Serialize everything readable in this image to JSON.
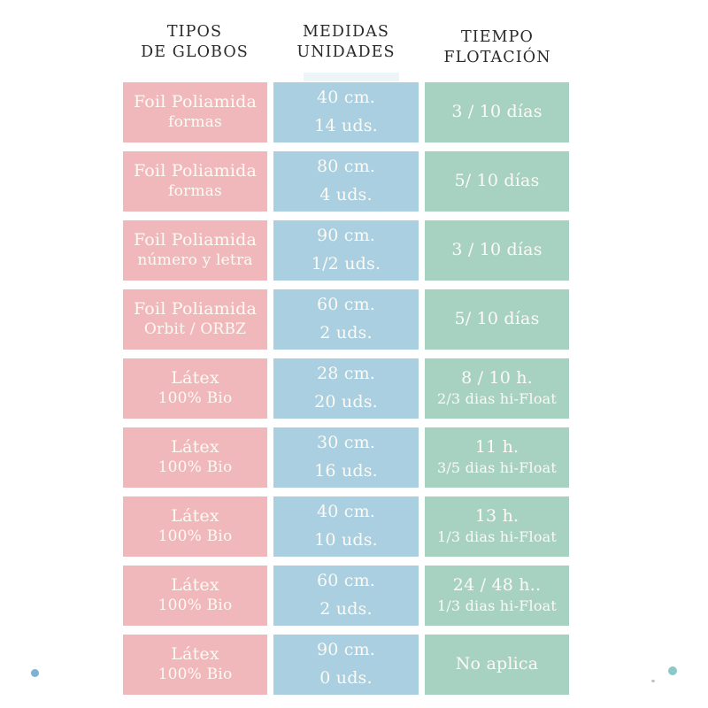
{
  "title_columns": [
    {
      "line1": "TIPOS",
      "line2": "DE GLOBOS"
    },
    {
      "line1": "MEDIDAS",
      "line2": "UNIDADES"
    },
    {
      "line1": "TIEMPO",
      "line2": "FLOTACIÓN"
    }
  ],
  "rows": [
    {
      "type": "Foil Poliamida",
      "type_sub": "formas",
      "size": "40 cm.",
      "units": "14 uds.",
      "float_main": "3 / 10 días",
      "float_sub": ""
    },
    {
      "type": "Foil Poliamida",
      "type_sub": "formas",
      "size": "80 cm.",
      "units": "4 uds.",
      "float_main": "5/ 10 días",
      "float_sub": ""
    },
    {
      "type": "Foil Poliamida",
      "type_sub": "número y letra",
      "size": "90 cm.",
      "units": "1/2 uds.",
      "float_main": "3 / 10 días",
      "float_sub": ""
    },
    {
      "type": "Foil Poliamida",
      "type_sub": "Orbit / ORBZ",
      "size": "60 cm.",
      "units": "2 uds.",
      "float_main": "5/ 10 días",
      "float_sub": ""
    },
    {
      "type": "Látex",
      "type_sub": "100% Bio",
      "size": "28 cm.",
      "units": "20 uds.",
      "float_main": "8 / 10 h.",
      "float_sub": "2/3 dias hi-Float"
    },
    {
      "type": "Látex",
      "type_sub": "100% Bio",
      "size": "30 cm.",
      "units": "16 uds.",
      "float_main": "11 h.",
      "float_sub": "3/5 dias hi-Float"
    },
    {
      "type": "Látex",
      "type_sub": "100% Bio",
      "size": "40 cm.",
      "units": "10 uds.",
      "float_main": "13 h.",
      "float_sub": "1/3 dias hi-Float"
    },
    {
      "type": "Látex",
      "type_sub": "100% Bio",
      "size": "60 cm.",
      "units": "2 uds.",
      "float_main": "24 / 48 h..",
      "float_sub": "1/3 dias hi-Float"
    },
    {
      "type": "Látex",
      "type_sub": "100% Bio",
      "size": "90 cm.",
      "units": "0 uds.",
      "float_main": "No aplica",
      "float_sub": ""
    }
  ],
  "palette": {
    "pink": "#f1b8bb",
    "blue": "#a9cfe0",
    "green": "#a7d2c2",
    "cell-text": "#fdfaf4",
    "hdr-text": "#2a2a2a",
    "dot-blue": "#7cb2d3",
    "dot-teal": "#8ac9c5"
  },
  "chart_data": {
    "type": "table",
    "title": "",
    "columns": [
      "TIPOS DE GLOBOS",
      "MEDIDAS UNIDADES",
      "TIEMPO FLOTACIÓN"
    ],
    "rows": [
      [
        "Foil Poliamida formas",
        "40 cm. 14 uds.",
        "3 / 10 días"
      ],
      [
        "Foil Poliamida formas",
        "80 cm. 4 uds.",
        "5/ 10 días"
      ],
      [
        "Foil Poliamida número y letra",
        "90 cm. 1/2 uds.",
        "3 / 10 días"
      ],
      [
        "Foil Poliamida Orbit / ORBZ",
        "60 cm. 2 uds.",
        "5/ 10 días"
      ],
      [
        "Látex 100% Bio",
        "28 cm. 20 uds.",
        "8 / 10 h. 2/3 dias hi-Float"
      ],
      [
        "Látex 100% Bio",
        "30 cm. 16 uds.",
        "11 h. 3/5 dias hi-Float"
      ],
      [
        "Látex 100% Bio",
        "40 cm. 10 uds.",
        "13 h. 1/3 dias hi-Float"
      ],
      [
        "Látex 100% Bio",
        "60 cm. 2 uds.",
        "24 / 48 h.. 1/3 dias hi-Float"
      ],
      [
        "Látex 100% Bio",
        "90 cm. 0 uds.",
        "No aplica"
      ]
    ],
    "layout": {
      "grid": false,
      "legend": "none",
      "cell_colors_by_column": [
        "#f1b8bb",
        "#a9cfe0",
        "#a7d2c2"
      ]
    }
  }
}
